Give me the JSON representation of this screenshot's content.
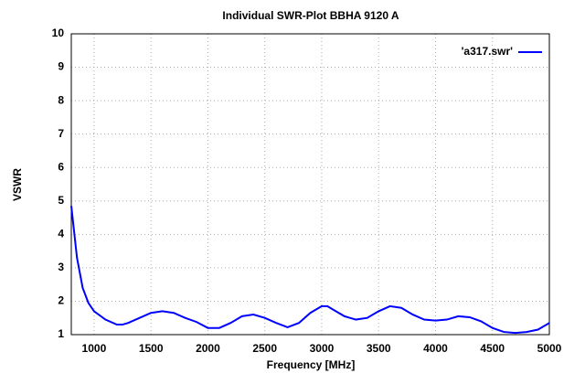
{
  "chart_data": {
    "type": "line",
    "title": "Individual SWR-Plot BBHA 9120 A",
    "xlabel": "Frequency [MHz]",
    "ylabel": "VSWR",
    "x": [
      800,
      850,
      900,
      950,
      1000,
      1100,
      1200,
      1250,
      1300,
      1400,
      1500,
      1600,
      1700,
      1800,
      1900,
      2000,
      2100,
      2200,
      2300,
      2400,
      2500,
      2600,
      2700,
      2800,
      2900,
      3000,
      3050,
      3100,
      3200,
      3300,
      3400,
      3500,
      3600,
      3700,
      3800,
      3900,
      4000,
      4100,
      4200,
      4300,
      4400,
      4500,
      4600,
      4700,
      4800,
      4900,
      5000
    ],
    "series": [
      {
        "name": "'a317.swr'",
        "color": "#0000ff",
        "values": [
          4.85,
          3.3,
          2.4,
          1.95,
          1.7,
          1.45,
          1.3,
          1.3,
          1.35,
          1.5,
          1.65,
          1.7,
          1.65,
          1.5,
          1.38,
          1.2,
          1.2,
          1.35,
          1.55,
          1.6,
          1.5,
          1.35,
          1.22,
          1.35,
          1.65,
          1.85,
          1.85,
          1.75,
          1.55,
          1.45,
          1.5,
          1.7,
          1.85,
          1.8,
          1.6,
          1.45,
          1.42,
          1.45,
          1.55,
          1.52,
          1.4,
          1.2,
          1.08,
          1.05,
          1.08,
          1.15,
          1.35
        ]
      }
    ],
    "xlim": [
      800,
      5000
    ],
    "xticks": [
      1000,
      1500,
      2000,
      2500,
      3000,
      3500,
      4000,
      4500,
      5000
    ],
    "ylim": [
      1,
      10
    ],
    "yticks": [
      1,
      2,
      3,
      4,
      5,
      6,
      7,
      8,
      9,
      10
    ],
    "grid": true,
    "legend": "top-right"
  }
}
